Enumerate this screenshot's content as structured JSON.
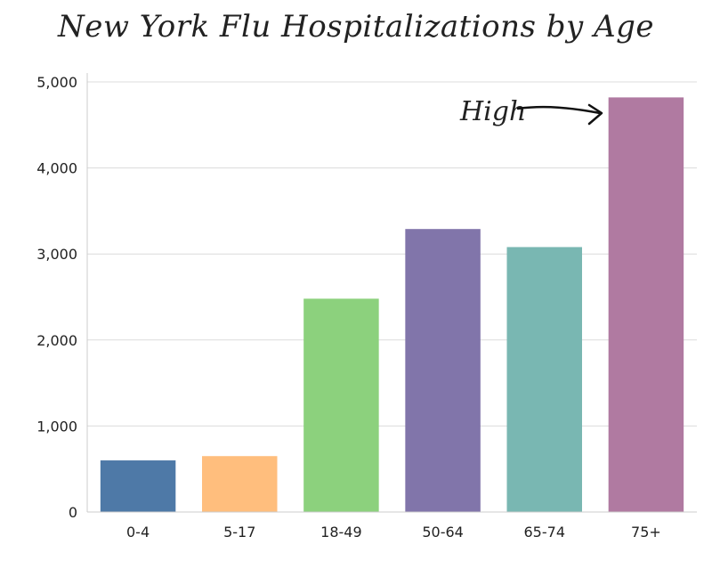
{
  "chart_data": {
    "type": "bar",
    "title": "New York Flu Hospitalizations by Age",
    "categories": [
      "0-4",
      "5-17",
      "18-49",
      "50-64",
      "65-74",
      "75+"
    ],
    "values": [
      600,
      650,
      2480,
      3290,
      3080,
      4820
    ],
    "colors": [
      "#4e79a7",
      "#ffbe7d",
      "#8cd17d",
      "#8175aa",
      "#79b7b2",
      "#b07aa1"
    ],
    "ylim": [
      0,
      5000
    ],
    "yticks": [
      0,
      1000,
      2000,
      3000,
      4000,
      5000
    ],
    "ytick_labels": [
      "0",
      "1,000",
      "2,000",
      "3,000",
      "4,000",
      "5,000"
    ],
    "grid": true,
    "annotation": {
      "text": "High",
      "target": "75+"
    }
  }
}
